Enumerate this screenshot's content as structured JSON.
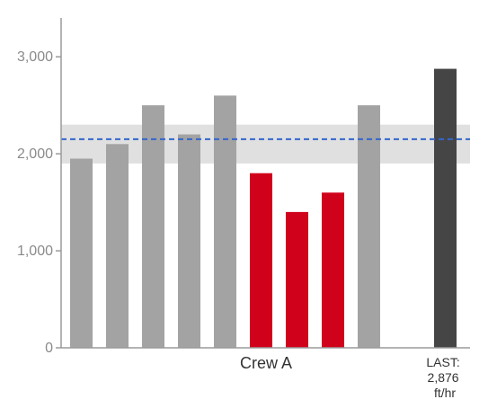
{
  "chart_data": {
    "type": "bar",
    "ylim": [
      0,
      3400
    ],
    "yticks": [
      0,
      1000,
      2000,
      3000
    ],
    "ytick_labels": [
      "0",
      "1,000",
      "2,000",
      "3,000"
    ],
    "values": [
      1950,
      2100,
      2500,
      2200,
      2600,
      1800,
      1400,
      1600,
      2500
    ],
    "highlight": [
      false,
      false,
      false,
      false,
      false,
      true,
      true,
      true,
      false
    ],
    "group_label": "Crew A",
    "reference_line": 2150,
    "reference_band": [
      1900,
      2300
    ],
    "last": {
      "value": 2876,
      "label_lines": [
        "LAST:",
        "2,876",
        "ft/hr"
      ]
    },
    "colors": {
      "bar": "#a3a3a3",
      "highlight": "#d0021b",
      "last": "#454545",
      "band": "#e0e0e0",
      "reference_line": "#3366cc",
      "axis": "#9a9a9a"
    }
  }
}
